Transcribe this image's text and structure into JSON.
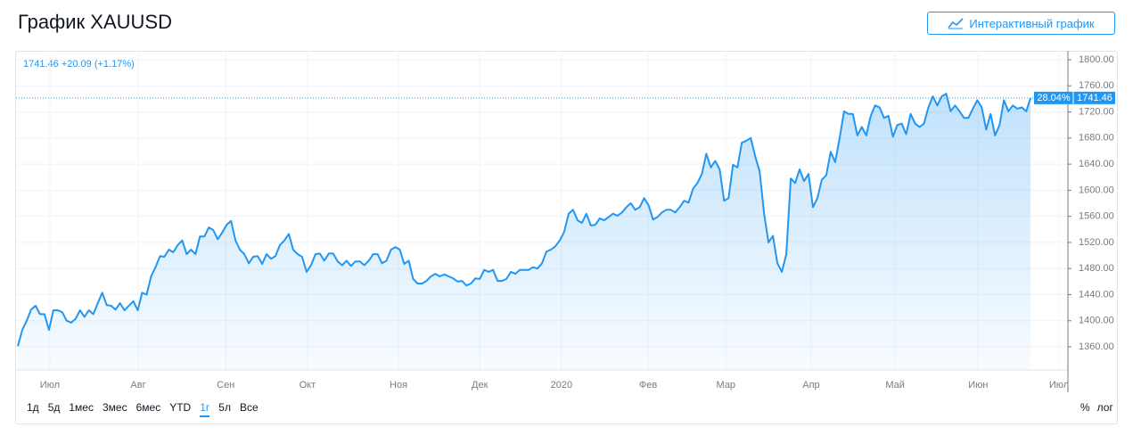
{
  "header": {
    "title": "График XAUUSD",
    "button": "Интерактивный график"
  },
  "chart_data": {
    "type": "line",
    "quote": "1741.46 +20.09 (+1.17%)",
    "price_label": "1741.46",
    "change_label": "28.04%",
    "color": "#2196f3",
    "values": [
      1361,
      1386,
      1400,
      1417,
      1423,
      1410,
      1410,
      1386,
      1416,
      1416,
      1413,
      1400,
      1397,
      1403,
      1416,
      1406,
      1416,
      1410,
      1427,
      1443,
      1424,
      1423,
      1417,
      1427,
      1416,
      1423,
      1430,
      1416,
      1443,
      1440,
      1468,
      1482,
      1499,
      1498,
      1509,
      1505,
      1516,
      1523,
      1502,
      1509,
      1502,
      1529,
      1529,
      1543,
      1539,
      1525,
      1535,
      1547,
      1553,
      1523,
      1509,
      1502,
      1488,
      1498,
      1499,
      1487,
      1502,
      1495,
      1499,
      1516,
      1523,
      1533,
      1509,
      1502,
      1498,
      1475,
      1485,
      1502,
      1503,
      1492,
      1503,
      1503,
      1491,
      1485,
      1492,
      1484,
      1491,
      1491,
      1485,
      1492,
      1502,
      1502,
      1488,
      1492,
      1509,
      1513,
      1509,
      1487,
      1492,
      1464,
      1457,
      1457,
      1461,
      1468,
      1472,
      1468,
      1471,
      1468,
      1465,
      1460,
      1461,
      1454,
      1457,
      1465,
      1464,
      1478,
      1475,
      1478,
      1461,
      1461,
      1464,
      1475,
      1472,
      1478,
      1478,
      1478,
      1482,
      1480,
      1488,
      1506,
      1509,
      1514,
      1523,
      1536,
      1564,
      1570,
      1554,
      1550,
      1564,
      1546,
      1547,
      1557,
      1554,
      1559,
      1564,
      1561,
      1566,
      1574,
      1580,
      1570,
      1574,
      1588,
      1577,
      1555,
      1559,
      1566,
      1570,
      1570,
      1566,
      1574,
      1584,
      1581,
      1602,
      1611,
      1625,
      1656,
      1635,
      1645,
      1632,
      1584,
      1588,
      1639,
      1635,
      1673,
      1676,
      1680,
      1652,
      1629,
      1564,
      1520,
      1530,
      1488,
      1475,
      1502,
      1618,
      1611,
      1632,
      1614,
      1625,
      1574,
      1588,
      1616,
      1623,
      1659,
      1643,
      1680,
      1721,
      1717,
      1717,
      1684,
      1697,
      1684,
      1714,
      1730,
      1727,
      1711,
      1714,
      1682,
      1700,
      1702,
      1686,
      1717,
      1702,
      1697,
      1702,
      1727,
      1744,
      1730,
      1744,
      1748,
      1721,
      1730,
      1721,
      1711,
      1711,
      1725,
      1738,
      1727,
      1693,
      1717,
      1684,
      1700,
      1738,
      1721,
      1730,
      1725,
      1727,
      1721,
      1741.46
    ],
    "xlim": [
      -0.4,
      236.4
    ],
    "xticks": [
      {
        "value": 7.2,
        "label": "Июл"
      },
      {
        "value": 27.1,
        "label": "Авг"
      },
      {
        "value": 46.8,
        "label": "Сен"
      },
      {
        "value": 65.2,
        "label": "Окт"
      },
      {
        "value": 85.7,
        "label": "Ноя"
      },
      {
        "value": 104,
        "label": "Дек"
      },
      {
        "value": 122.4,
        "label": "2020"
      },
      {
        "value": 141.9,
        "label": "Фев"
      },
      {
        "value": 159.4,
        "label": "Мар"
      },
      {
        "value": 178.6,
        "label": "Апр"
      },
      {
        "value": 197.5,
        "label": "Май"
      },
      {
        "value": 216.2,
        "label": "Июн"
      },
      {
        "value": 234.4,
        "label": "Июл"
      }
    ],
    "ylim": [
      1324.5,
      1813.7
    ],
    "yticks": [
      {
        "value": 1360,
        "label": "1360.00"
      },
      {
        "value": 1400,
        "label": "1400.00"
      },
      {
        "value": 1440,
        "label": "1440.00"
      },
      {
        "value": 1480,
        "label": "1480.00"
      },
      {
        "value": 1520,
        "label": "1520.00"
      },
      {
        "value": 1560,
        "label": "1560.00"
      },
      {
        "value": 1600,
        "label": "1600.00"
      },
      {
        "value": 1640,
        "label": "1640.00"
      },
      {
        "value": 1680,
        "label": "1680.00"
      },
      {
        "value": 1720,
        "label": "1720.00"
      },
      {
        "value": 1760,
        "label": "1760.00"
      },
      {
        "value": 1800,
        "label": "1800.00"
      }
    ],
    "grid": true
  },
  "controls": {
    "ranges": [
      "1д",
      "5д",
      "1мес",
      "3мес",
      "6мес",
      "YTD",
      "1г",
      "5л",
      "Все"
    ],
    "options": [
      "%",
      "лог"
    ]
  }
}
